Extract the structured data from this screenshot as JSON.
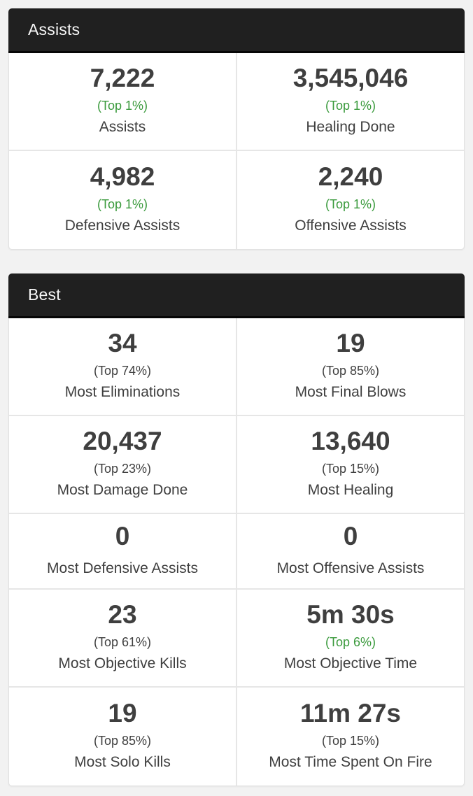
{
  "theme": {
    "page_bg": "#f2f2f2",
    "header_bg": "#202020",
    "header_text": "#f7f7f7",
    "stat_text": "#3f3f3f",
    "accent_green": "#3a9a3c",
    "divider": "#e6e6e6"
  },
  "cards": [
    {
      "title": "Assists",
      "rows": [
        {
          "cells": [
            {
              "value": "7,222",
              "percentile": "(Top 1%)",
              "tone": "good",
              "label": "Assists"
            },
            {
              "value": "3,545,046",
              "percentile": "(Top 1%)",
              "tone": "good",
              "label": "Healing Done"
            }
          ]
        },
        {
          "cells": [
            {
              "value": "4,982",
              "percentile": "(Top 1%)",
              "tone": "good",
              "label": "Defensive Assists"
            },
            {
              "value": "2,240",
              "percentile": "(Top 1%)",
              "tone": "good",
              "label": "Offensive Assists"
            }
          ]
        }
      ]
    },
    {
      "title": "Best",
      "rows": [
        {
          "cells": [
            {
              "value": "34",
              "percentile": "(Top 74%)",
              "tone": "normal",
              "label": "Most Eliminations"
            },
            {
              "value": "19",
              "percentile": "(Top 85%)",
              "tone": "normal",
              "label": "Most Final Blows"
            }
          ]
        },
        {
          "cells": [
            {
              "value": "20,437",
              "percentile": "(Top 23%)",
              "tone": "normal",
              "label": "Most Damage Done"
            },
            {
              "value": "13,640",
              "percentile": "(Top 15%)",
              "tone": "normal",
              "label": "Most Healing"
            }
          ]
        },
        {
          "cells": [
            {
              "value": "0",
              "label": "Most Defensive Assists"
            },
            {
              "value": "0",
              "label": "Most Offensive Assists"
            }
          ]
        },
        {
          "cells": [
            {
              "value": "23",
              "percentile": "(Top 61%)",
              "tone": "normal",
              "label": "Most Objective Kills"
            },
            {
              "value": "5m 30s",
              "percentile": "(Top 6%)",
              "tone": "good",
              "label": "Most Objective Time"
            }
          ]
        },
        {
          "cells": [
            {
              "value": "19",
              "percentile": "(Top 85%)",
              "tone": "normal",
              "label": "Most Solo Kills"
            },
            {
              "value": "11m 27s",
              "percentile": "(Top 15%)",
              "tone": "normal",
              "label": "Most Time Spent On Fire"
            }
          ]
        }
      ]
    }
  ]
}
